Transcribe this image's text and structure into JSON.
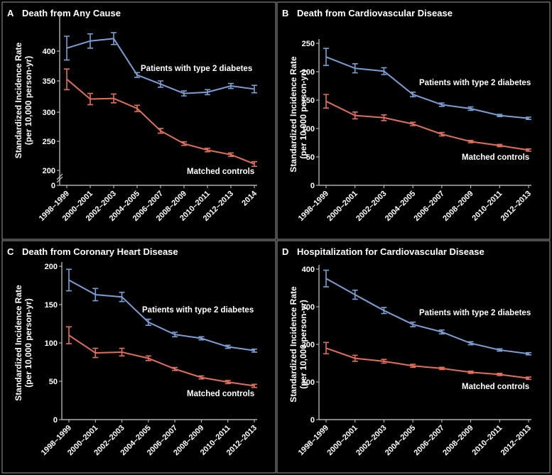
{
  "chart_data": [
    {
      "type": "line",
      "letter": "A",
      "title": "Death from Any Cause",
      "ylabel_line1": "Standardized Incidence Rate",
      "ylabel_line2": "(per 10,000 person-yr)",
      "categories": [
        "1998–1999",
        "2000–2001",
        "2002–2003",
        "2004–2005",
        "2006–2007",
        "2008–2009",
        "2010–2011",
        "2012–2013",
        "2014"
      ],
      "yticks": [
        "0",
        "200",
        "250",
        "300",
        "350",
        "400"
      ],
      "axis_break": true,
      "ylim": [
        200,
        430
      ],
      "series": [
        {
          "name": "Patients with type 2 diabetes",
          "color": "#7b9fd4",
          "values": [
            405,
            417,
            421,
            360,
            345,
            330,
            332,
            342,
            337
          ],
          "err": [
            20,
            12,
            10,
            4,
            5,
            4,
            4,
            4,
            6
          ]
        },
        {
          "name": "Matched controls",
          "color": "#e0705a",
          "values": [
            353,
            321,
            322,
            306,
            268,
            246,
            235,
            227,
            211
          ],
          "err": [
            17,
            9,
            7,
            5,
            4,
            3,
            3,
            3,
            4
          ]
        }
      ]
    },
    {
      "type": "line",
      "letter": "B",
      "title": "Death from Cardiovascular Disease",
      "ylabel_line1": "Standardized Incidence Rate",
      "ylabel_line2": "(per 10,000 person-yr)",
      "categories": [
        "1998–1999",
        "2000–2001",
        "2002–2003",
        "2004–2005",
        "2006–2007",
        "2008–2009",
        "2010–2011",
        "2012–2013"
      ],
      "yticks": [
        "0",
        "50",
        "100",
        "150",
        "200",
        "250"
      ],
      "axis_break": false,
      "ylim": [
        0,
        250
      ],
      "series": [
        {
          "name": "Patients with type 2 diabetes",
          "color": "#7b9fd4",
          "values": [
            226,
            206,
            201,
            160,
            142,
            135,
            123,
            118
          ],
          "err": [
            15,
            8,
            6,
            4,
            3,
            3,
            2,
            2
          ]
        },
        {
          "name": "Matched controls",
          "color": "#e0705a",
          "values": [
            148,
            123,
            119,
            108,
            90,
            77,
            70,
            62
          ],
          "err": [
            12,
            6,
            5,
            3,
            3,
            2,
            2,
            2
          ]
        }
      ]
    },
    {
      "type": "line",
      "letter": "C",
      "title": "Death from Coronary Heart Disease",
      "ylabel_line1": "Standardized Incidence Rate",
      "ylabel_line2": "(per 10,000 person-yr)",
      "categories": [
        "1998–1999",
        "2000–2001",
        "2002–2003",
        "2004–2005",
        "2006–2007",
        "2008–2009",
        "2010–2011",
        "2012–2013"
      ],
      "yticks": [
        "0",
        "50",
        "100",
        "150",
        "200"
      ],
      "axis_break": false,
      "ylim": [
        0,
        200
      ],
      "series": [
        {
          "name": "Patients with type 2 diabetes",
          "color": "#7b9fd4",
          "values": [
            182,
            163,
            160,
            127,
            111,
            106,
            95,
            90
          ],
          "err": [
            14,
            8,
            6,
            4,
            3,
            2,
            2,
            2
          ]
        },
        {
          "name": "Matched controls",
          "color": "#e0705a",
          "values": [
            110,
            87,
            88,
            80,
            66,
            55,
            49,
            44
          ],
          "err": [
            11,
            6,
            5,
            3,
            2,
            2,
            2,
            2
          ]
        }
      ]
    },
    {
      "type": "line",
      "letter": "D",
      "title": "Hospitalization for Cardiovascular Disease",
      "ylabel_line1": "Standardized Incidence Rate",
      "ylabel_line2": "(per 10,000 person-yr)",
      "categories": [
        "1998–1999",
        "2000–2001",
        "2002–2003",
        "2004–2005",
        "2006–2007",
        "2008–2009",
        "2010–2011",
        "2012–2013"
      ],
      "yticks": [
        "0",
        "100",
        "200",
        "300",
        "400"
      ],
      "axis_break": false,
      "ylim": [
        0,
        400
      ],
      "series": [
        {
          "name": "Patients with type 2 diabetes",
          "color": "#7b9fd4",
          "values": [
            375,
            332,
            290,
            253,
            233,
            203,
            185,
            175
          ],
          "err": [
            22,
            12,
            8,
            6,
            5,
            4,
            3,
            3
          ]
        },
        {
          "name": "Matched controls",
          "color": "#e0705a",
          "values": [
            190,
            163,
            155,
            143,
            136,
            126,
            120,
            110
          ],
          "err": [
            15,
            8,
            5,
            4,
            3,
            3,
            3,
            3
          ]
        }
      ]
    }
  ]
}
